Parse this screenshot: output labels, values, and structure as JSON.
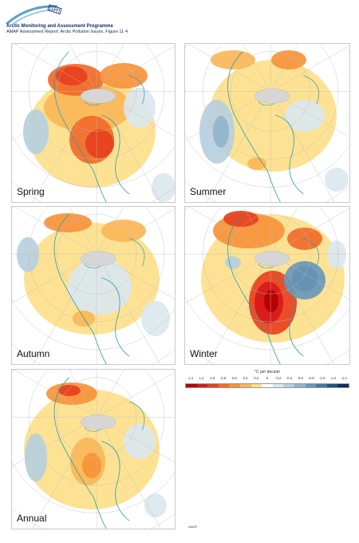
{
  "header": {
    "programme": "Arctic Monitoring and Assessment Programme",
    "report": "AMAP Assessment Report: Arctic Pollution Issues, Figure 11·4"
  },
  "panels": [
    {
      "id": "spring",
      "label": "Spring"
    },
    {
      "id": "summer",
      "label": "Summer"
    },
    {
      "id": "autumn",
      "label": "Autumn"
    },
    {
      "id": "winter",
      "label": "Winter"
    },
    {
      "id": "annual",
      "label": "Annual"
    }
  ],
  "legend": {
    "title": "°C per decade",
    "ticks": [
      "1.4",
      "1.2",
      "1.0",
      "0.8",
      "0.6",
      "0.4",
      "0.2",
      "0",
      "-0.2",
      "-0.4",
      "-0.6",
      "-0.8",
      "-1.0",
      "-1.2",
      "-1.4"
    ],
    "colors": [
      "#b30000",
      "#d7191c",
      "#e8401e",
      "#f16a2a",
      "#f7923a",
      "#fbb756",
      "#fde08a",
      "#ffffff",
      "#dbe7ef",
      "#b7cfde",
      "#8fb4cc",
      "#6a97b8",
      "#44789f",
      "#1f5684",
      "#0b2f5c"
    ]
  },
  "footer": {
    "credit": "AMAP"
  },
  "colors": {
    "land_line": "#2a9fa8",
    "ice_cap": "#d6d6d6",
    "grid": "#bdbdbd"
  }
}
